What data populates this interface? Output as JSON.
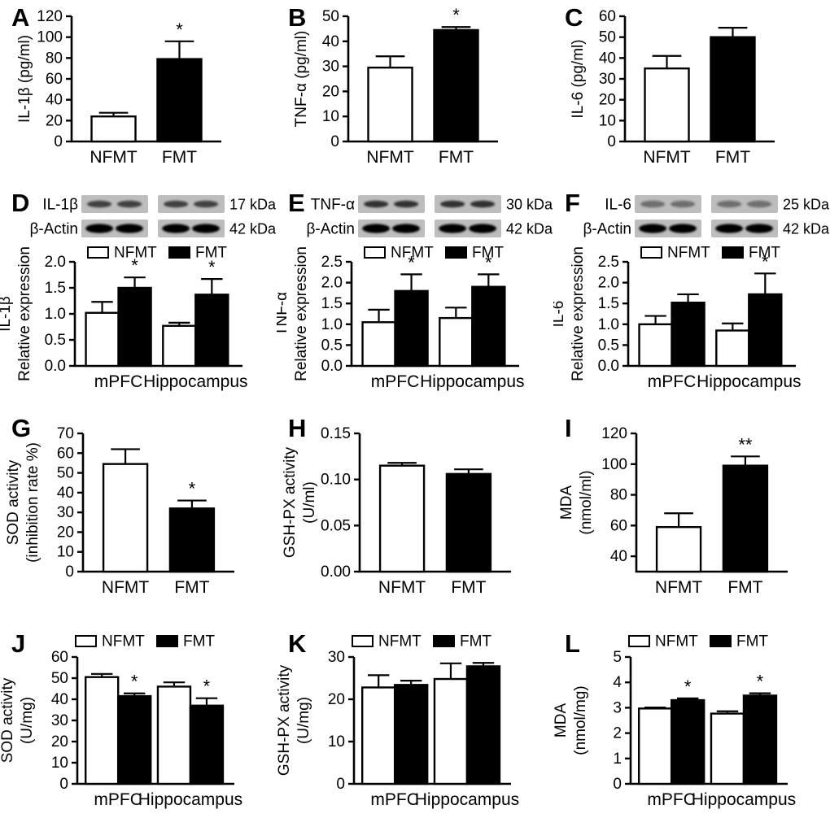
{
  "colors": {
    "bar_nfmt": "#ffffff",
    "bar_fmt": "#000000",
    "axis": "#000000",
    "background": "#ffffff",
    "blot_strip": "#bdbdbd"
  },
  "groups": [
    "NFMT",
    "FMT"
  ],
  "chart_data": [
    {
      "panel": "A",
      "type": "bar",
      "categories": [
        "NFMT",
        "FMT"
      ],
      "values": [
        24,
        79
      ],
      "errors": [
        3.5,
        17
      ],
      "sig": [
        "",
        "*"
      ],
      "ylabel_lines": [
        "IL-1β (pg/ml)"
      ],
      "ylim": [
        0,
        120
      ],
      "yticks": [
        0,
        20,
        40,
        60,
        80,
        100,
        120
      ],
      "ytick_format": "int"
    },
    {
      "panel": "B",
      "type": "bar",
      "categories": [
        "NFMT",
        "FMT"
      ],
      "values": [
        29.5,
        44.5
      ],
      "errors": [
        4.5,
        1.2
      ],
      "sig": [
        "",
        "*"
      ],
      "ylabel_lines": [
        "TNF-α (pg/ml)"
      ],
      "ylim": [
        0,
        50
      ],
      "yticks": [
        0,
        10,
        20,
        30,
        40,
        50
      ],
      "ytick_format": "int"
    },
    {
      "panel": "C",
      "type": "bar",
      "categories": [
        "NFMT",
        "FMT"
      ],
      "values": [
        35,
        50
      ],
      "errors": [
        6,
        4.5
      ],
      "sig": [
        "",
        ""
      ],
      "ylabel_lines": [
        "IL-6 (pg/ml)"
      ],
      "ylim": [
        0,
        60
      ],
      "yticks": [
        0,
        10,
        20,
        30,
        40,
        50,
        60
      ],
      "ytick_format": "int"
    },
    {
      "panel": "D",
      "type": "grouped-bar",
      "blot": {
        "target_band_opacity": 0.8,
        "rows": [
          {
            "label": "IL-1β",
            "kda": "17 kDa"
          },
          {
            "label": "β-Actin",
            "kda": "42 kDa"
          }
        ]
      },
      "legend": [
        "NFMT",
        "FMT"
      ],
      "categories": [
        "mPFC",
        "Hippocampus"
      ],
      "series": [
        {
          "name": "NFMT",
          "values": [
            1.02,
            0.77
          ],
          "errors": [
            0.21,
            0.06
          ],
          "sig": [
            "",
            ""
          ]
        },
        {
          "name": "FMT",
          "values": [
            1.5,
            1.37
          ],
          "errors": [
            0.2,
            0.3
          ],
          "sig": [
            "*",
            "*"
          ]
        }
      ],
      "ylabel_lines": [
        "IL-1β",
        "Relative expression"
      ],
      "ylim": [
        0,
        2
      ],
      "yticks": [
        0,
        0.5,
        1,
        1.5,
        2
      ],
      "ytick_format": "1dp"
    },
    {
      "panel": "E",
      "type": "grouped-bar",
      "blot": {
        "target_band_opacity": 0.9,
        "rows": [
          {
            "label": "TNF-α",
            "kda": "30 kDa"
          },
          {
            "label": "β-Actin",
            "kda": "42 kDa"
          }
        ]
      },
      "legend": [
        "NFMT",
        "FMT"
      ],
      "categories": [
        "mPFC",
        "Hippocampus"
      ],
      "series": [
        {
          "name": "NFMT",
          "values": [
            1.05,
            1.15
          ],
          "errors": [
            0.3,
            0.25
          ],
          "sig": [
            "",
            ""
          ]
        },
        {
          "name": "FMT",
          "values": [
            1.8,
            1.9
          ],
          "errors": [
            0.4,
            0.3
          ],
          "sig": [
            "*",
            "*"
          ]
        }
      ],
      "ylabel_lines": [
        "TNF-α",
        "Relative expression"
      ],
      "ylim": [
        0,
        2.5
      ],
      "yticks": [
        0,
        0.5,
        1,
        1.5,
        2,
        2.5
      ],
      "ytick_format": "1dp"
    },
    {
      "panel": "F",
      "type": "grouped-bar",
      "blot": {
        "target_band_opacity": 0.5,
        "rows": [
          {
            "label": "IL-6",
            "kda": "25 kDa"
          },
          {
            "label": "β-Actin",
            "kda": "42 kDa"
          }
        ]
      },
      "legend": [
        "NFMT",
        "FMT"
      ],
      "categories": [
        "mPFC",
        "Hippocampus"
      ],
      "series": [
        {
          "name": "NFMT",
          "values": [
            1.0,
            0.85
          ],
          "errors": [
            0.2,
            0.17
          ],
          "sig": [
            "",
            ""
          ]
        },
        {
          "name": "FMT",
          "values": [
            1.52,
            1.72
          ],
          "errors": [
            0.2,
            0.5
          ],
          "sig": [
            "",
            "*"
          ]
        }
      ],
      "ylabel_lines": [
        "IL-6",
        "Relative expression"
      ],
      "ylim": [
        0,
        2.5
      ],
      "yticks": [
        0,
        0.5,
        1,
        1.5,
        2,
        2.5
      ],
      "ytick_format": "1dp"
    },
    {
      "panel": "G",
      "type": "bar",
      "categories": [
        "NFMT",
        "FMT"
      ],
      "values": [
        54.5,
        32
      ],
      "errors": [
        7.5,
        4
      ],
      "sig": [
        "",
        "*"
      ],
      "ylabel_lines": [
        "SOD activity",
        "(inhibition rate %)"
      ],
      "ylim": [
        0,
        70
      ],
      "yticks": [
        0,
        10,
        20,
        30,
        40,
        50,
        60,
        70
      ],
      "ytick_format": "int"
    },
    {
      "panel": "H",
      "type": "bar",
      "categories": [
        "NFMT",
        "FMT"
      ],
      "values": [
        0.115,
        0.106
      ],
      "errors": [
        0.003,
        0.005
      ],
      "sig": [
        "",
        ""
      ],
      "ylabel_lines": [
        "GSH-PX activity",
        "(U/ml)"
      ],
      "ylim": [
        0,
        0.15
      ],
      "yticks": [
        0,
        0.05,
        0.1,
        0.15
      ],
      "ytick_format": "2dp"
    },
    {
      "panel": "I",
      "type": "bar",
      "categories": [
        "NFMT",
        "FMT"
      ],
      "values": [
        59,
        99
      ],
      "errors": [
        9,
        6
      ],
      "sig": [
        "",
        "**"
      ],
      "ylabel_lines": [
        "MDA",
        "(nmol/ml)"
      ],
      "ylim": [
        30,
        120
      ],
      "yticks": [
        40,
        60,
        80,
        100,
        120
      ],
      "ytick_format": "int"
    },
    {
      "panel": "J",
      "type": "grouped-bar",
      "legend": [
        "NFMT",
        "FMT"
      ],
      "categories": [
        "mPFC",
        "Hippocampus"
      ],
      "series": [
        {
          "name": "NFMT",
          "values": [
            50.5,
            46
          ],
          "errors": [
            1.5,
            2
          ],
          "sig": [
            "",
            ""
          ]
        },
        {
          "name": "FMT",
          "values": [
            41.5,
            37
          ],
          "errors": [
            1.3,
            3.5
          ],
          "sig": [
            "*",
            "*"
          ]
        }
      ],
      "ylabel_lines": [
        "SOD activity",
        "(U/mg)"
      ],
      "ylim": [
        0,
        60
      ],
      "yticks": [
        0,
        10,
        20,
        30,
        40,
        50,
        60
      ],
      "ytick_format": "int"
    },
    {
      "panel": "K",
      "type": "grouped-bar",
      "legend": [
        "NFMT",
        "FMT"
      ],
      "categories": [
        "mPFC",
        "Hippocampus"
      ],
      "series": [
        {
          "name": "NFMT",
          "values": [
            22.8,
            24.8
          ],
          "errors": [
            2.9,
            3.7
          ],
          "sig": [
            "",
            ""
          ]
        },
        {
          "name": "FMT",
          "values": [
            23.4,
            27.8
          ],
          "errors": [
            1.0,
            0.8
          ],
          "sig": [
            "",
            ""
          ]
        }
      ],
      "ylabel_lines": [
        "GSH-PX activity",
        "(U/mg)"
      ],
      "ylim": [
        0,
        30
      ],
      "yticks": [
        0,
        10,
        20,
        30
      ],
      "ytick_format": "int"
    },
    {
      "panel": "L",
      "type": "grouped-bar",
      "legend": [
        "NFMT",
        "FMT"
      ],
      "categories": [
        "mPFC",
        "Hippocampus"
      ],
      "series": [
        {
          "name": "NFMT",
          "values": [
            2.97,
            2.77
          ],
          "errors": [
            0.04,
            0.09
          ],
          "sig": [
            "",
            ""
          ]
        },
        {
          "name": "FMT",
          "values": [
            3.3,
            3.48
          ],
          "errors": [
            0.07,
            0.09
          ],
          "sig": [
            "*",
            "*"
          ]
        }
      ],
      "ylabel_lines": [
        "MDA",
        "(nmol/mg)"
      ],
      "ylim": [
        0,
        5
      ],
      "yticks": [
        0,
        1,
        2,
        3,
        4,
        5
      ],
      "ytick_format": "int"
    }
  ]
}
